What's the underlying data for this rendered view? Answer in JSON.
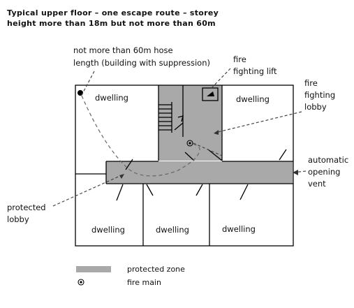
{
  "title": {
    "line1": "Typical upper floor – one escape route – storey",
    "line2": "height more than 18m but not more than 60m"
  },
  "labels": {
    "hose_line1": "not more than 60m hose",
    "hose_line2": "length (building with suppression)",
    "ff_lift_line1": "fire",
    "ff_lift_line2": "fighting lift",
    "ff_lobby_line1": "fire",
    "ff_lobby_line2": "fighting",
    "ff_lobby_line3": "lobby",
    "vent_line1": "automatic",
    "vent_line2": "opening",
    "vent_line3": "vent",
    "prot_lobby_line1": "protected",
    "prot_lobby_line2": "lobby",
    "dwelling_top_left": "dwelling",
    "dwelling_top_right": "dwelling",
    "dwelling_bottom_1": "dwelling",
    "dwelling_bottom_2": "dwelling",
    "dwelling_bottom_3": "dwelling"
  },
  "legend": {
    "protected_zone": "protected zone",
    "fire_main": "fire main"
  },
  "colors": {
    "protected_zone": "#a9a9a9",
    "walls": "#000000"
  },
  "icons": {
    "fire_main": "fire-main-icon",
    "hose_origin": "hose-origin-dot-icon"
  }
}
